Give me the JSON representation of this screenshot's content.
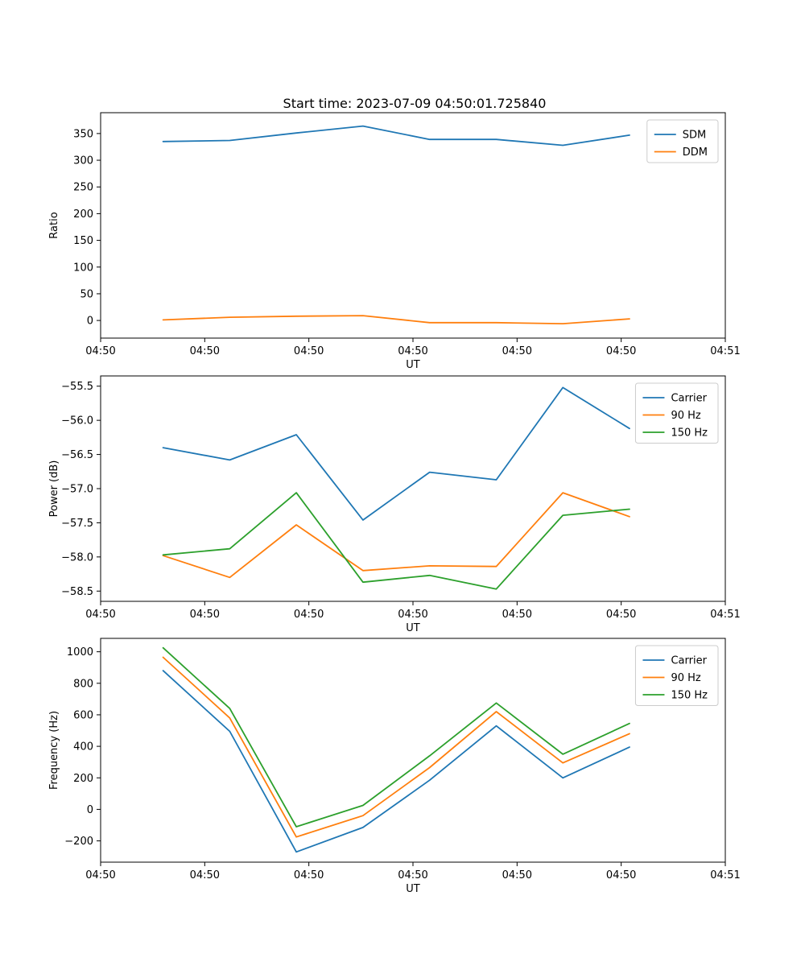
{
  "figure": {
    "title": "Start time: 2023-07-09 04:50:01.725840",
    "background_color": "#ffffff",
    "text_color": "#000000",
    "spine_color": "#000000",
    "legend_border_color": "#cccccc"
  },
  "palette": {
    "blue": "#1f77b4",
    "orange": "#ff7f0e",
    "green": "#2ca02c"
  },
  "chart_data": [
    {
      "type": "line",
      "id": "ratio-chart",
      "title": "Start time: 2023-07-09 04:50:01.725840",
      "xlabel": "UT",
      "ylabel": "Ratio",
      "xlim_seconds": [
        0,
        60
      ],
      "xticks_seconds": [
        0,
        10,
        20,
        30,
        40,
        50,
        60
      ],
      "xtick_labels": [
        "04:50",
        "04:50",
        "04:50",
        "04:50",
        "04:50",
        "04:50",
        "04:51"
      ],
      "ylim": [
        -33,
        389
      ],
      "yticks": [
        0,
        50,
        100,
        150,
        200,
        250,
        300,
        350
      ],
      "ytick_labels": [
        "0",
        "50",
        "100",
        "150",
        "200",
        "250",
        "300",
        "350"
      ],
      "grid": false,
      "legend_position": "upper right",
      "x_seconds": [
        6.0,
        12.4,
        18.8,
        25.2,
        31.6,
        38.0,
        44.4,
        50.8
      ],
      "series": [
        {
          "name": "SDM",
          "color": "#1f77b4",
          "values": [
            335,
            337,
            351,
            364,
            339,
            339,
            328,
            347
          ]
        },
        {
          "name": "DDM",
          "color": "#ff7f0e",
          "values": [
            1,
            6,
            8,
            9,
            -4,
            -4,
            -6,
            3
          ]
        }
      ]
    },
    {
      "type": "line",
      "id": "power-chart",
      "title": "",
      "xlabel": "UT",
      "ylabel": "Power (dB)",
      "xlim_seconds": [
        0,
        60
      ],
      "xticks_seconds": [
        0,
        10,
        20,
        30,
        40,
        50,
        60
      ],
      "xtick_labels": [
        "04:50",
        "04:50",
        "04:50",
        "04:50",
        "04:50",
        "04:50",
        "04:51"
      ],
      "ylim": [
        -58.65,
        -55.35
      ],
      "yticks": [
        -55.5,
        -56.0,
        -56.5,
        -57.0,
        -57.5,
        -58.0,
        -58.5
      ],
      "ytick_labels": [
        "−55.5",
        "−56.0",
        "−56.5",
        "−57.0",
        "−57.5",
        "−58.0",
        "−58.5"
      ],
      "grid": false,
      "legend_position": "upper right",
      "x_seconds": [
        6.0,
        12.4,
        18.8,
        25.2,
        31.6,
        38.0,
        44.4,
        50.8
      ],
      "series": [
        {
          "name": "Carrier",
          "color": "#1f77b4",
          "values": [
            -56.4,
            -56.58,
            -56.21,
            -57.46,
            -56.76,
            -56.87,
            -55.52,
            -56.12
          ]
        },
        {
          "name": "90 Hz",
          "color": "#ff7f0e",
          "values": [
            -57.98,
            -58.3,
            -57.53,
            -58.2,
            -58.13,
            -58.14,
            -57.06,
            -57.41
          ]
        },
        {
          "name": "150 Hz",
          "color": "#2ca02c",
          "values": [
            -57.97,
            -57.88,
            -57.06,
            -58.37,
            -58.27,
            -58.47,
            -57.39,
            -57.3
          ]
        }
      ]
    },
    {
      "type": "line",
      "id": "frequency-chart",
      "title": "",
      "xlabel": "UT",
      "ylabel": "Frequency (Hz)",
      "xlim_seconds": [
        0,
        60
      ],
      "xticks_seconds": [
        0,
        10,
        20,
        30,
        40,
        50,
        60
      ],
      "xtick_labels": [
        "04:50",
        "04:50",
        "04:50",
        "04:50",
        "04:50",
        "04:50",
        "04:51"
      ],
      "ylim": [
        -335,
        1085
      ],
      "yticks": [
        1000,
        800,
        600,
        400,
        200,
        0,
        -200
      ],
      "ytick_labels": [
        "1000",
        "800",
        "600",
        "400",
        "200",
        "0",
        "−200"
      ],
      "grid": false,
      "legend_position": "upper right",
      "x_seconds": [
        6.0,
        12.4,
        18.8,
        25.2,
        31.6,
        38.0,
        44.4,
        50.8
      ],
      "series": [
        {
          "name": "Carrier",
          "color": "#1f77b4",
          "values": [
            880,
            495,
            -270,
            -115,
            185,
            530,
            200,
            395
          ]
        },
        {
          "name": "90 Hz",
          "color": "#ff7f0e",
          "values": [
            965,
            580,
            -175,
            -40,
            265,
            620,
            295,
            480
          ]
        },
        {
          "name": "150 Hz",
          "color": "#2ca02c",
          "values": [
            1025,
            640,
            -110,
            25,
            340,
            675,
            350,
            545
          ]
        }
      ]
    }
  ]
}
